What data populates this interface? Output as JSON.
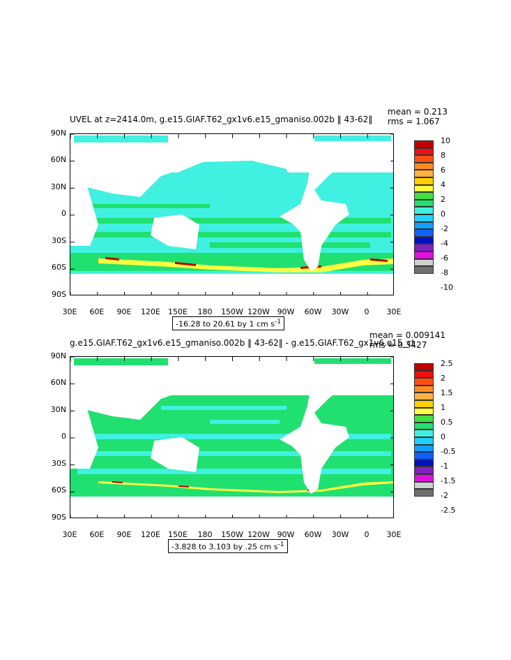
{
  "panels": [
    {
      "title": "UVEL at z=2414.0m, g.e15.GIAF.T62_gx1v6.e15_gmaniso.002b ‖ 43-62‖",
      "mean": "mean = 0.213",
      "rms": "rms = 1.067",
      "range_text": "-16.28 to 20.61 by 1 cm s",
      "range_sup": "-1",
      "lat_labels": [
        "90N",
        "60N",
        "30N",
        "0",
        "30S",
        "60S",
        "90S"
      ],
      "lon_labels": [
        "30E",
        "60E",
        "90E",
        "120E",
        "150E",
        "180",
        "150W",
        "120W",
        "90W",
        "60W",
        "30W",
        "0",
        "30E"
      ],
      "legend_labels": [
        "10",
        "8",
        "6",
        "4",
        "2",
        "0",
        "-2",
        "-4",
        "-6",
        "-8",
        "-10"
      ],
      "legend_colors": [
        "#c00000",
        "#ee1010",
        "#ff5010",
        "#ff8c20",
        "#ffb040",
        "#ffd000",
        "#ffff40",
        "#40e040",
        "#20e070",
        "#40f0e0",
        "#20d0ff",
        "#10a0ff",
        "#1060ff",
        "#0010c0",
        "#8020c0",
        "#e010e0",
        "#d0d0d0",
        "#707070"
      ]
    },
    {
      "title": "g.e15.GIAF.T62_gx1v6.e15_gmaniso.002b ‖ 43-62‖ - g.e15.GIAF.T62_gx1v6.e15_ct",
      "mean": "mean = 0.009141",
      "rms": "rms = 0.3427",
      "range_text": "-3.828 to 3.103 by .25 cm s",
      "range_sup": "-1",
      "lat_labels": [
        "90N",
        "60N",
        "30N",
        "0",
        "30S",
        "60S",
        "90S"
      ],
      "lon_labels": [
        "30E",
        "60E",
        "90E",
        "120E",
        "150E",
        "180",
        "150W",
        "120W",
        "90W",
        "60W",
        "30W",
        "0",
        "30E"
      ],
      "legend_labels": [
        "2.5",
        "2",
        "1.5",
        "1",
        "0.5",
        "0",
        "-0.5",
        "-1",
        "-1.5",
        "-2",
        "-2.5"
      ],
      "legend_colors": [
        "#c00000",
        "#ee1010",
        "#ff5010",
        "#ff8c20",
        "#ffb040",
        "#ffd000",
        "#ffff40",
        "#40e040",
        "#20e070",
        "#40f0e0",
        "#20d0ff",
        "#10a0ff",
        "#1060ff",
        "#0010c0",
        "#8020c0",
        "#e010e0",
        "#d0d0d0",
        "#707070"
      ]
    }
  ]
}
